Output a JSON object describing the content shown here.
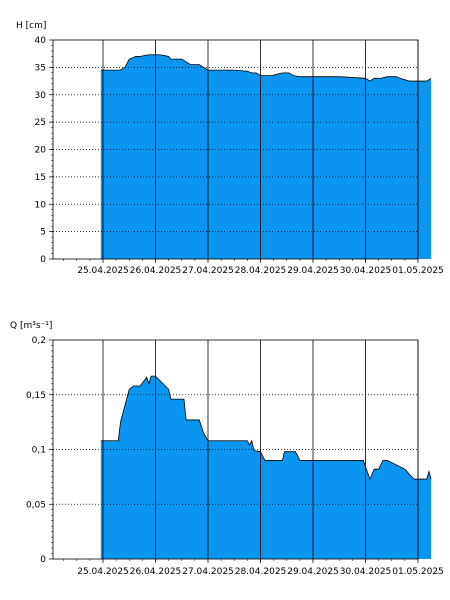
{
  "chart_data": [
    {
      "type": "area",
      "title": "",
      "xlabel": "",
      "ylabel": "H [cm]",
      "ylim": [
        0,
        40
      ],
      "y_ticks": [
        "0",
        "5",
        "10",
        "15",
        "20",
        "25",
        "30",
        "35",
        "40"
      ],
      "x_ticks": [
        "25.04.2025",
        "26.04.2025",
        "27.04.2025",
        "28.04.2025",
        "29.04.2025",
        "30.04.2025",
        "01.05.2025"
      ],
      "grid": true,
      "fill_color": "#0a96f0",
      "series": [
        {
          "x": [
            "2025-04-24 23:00",
            "2025-04-25 08:00",
            "2025-04-25 10:00",
            "2025-04-25 12:00",
            "2025-04-25 15:00",
            "2025-04-25 17:00",
            "2025-04-25 21:00",
            "2025-04-26 02:00",
            "2025-04-26 06:00",
            "2025-04-26 07:00",
            "2025-04-26 09:00",
            "2025-04-26 12:00",
            "2025-04-26 16:00",
            "2025-04-26 20:00",
            "2025-04-27 00:00",
            "2025-04-27 04:00",
            "2025-04-27 08:00",
            "2025-04-27 12:00",
            "2025-04-27 18:00",
            "2025-04-27 20:00",
            "2025-04-27 22:00",
            "2025-04-28 00:00",
            "2025-04-28 05:00",
            "2025-04-28 10:00",
            "2025-04-28 13:00",
            "2025-04-28 15:00",
            "2025-04-28 18:00",
            "2025-04-29 00:00",
            "2025-04-29 12:00",
            "2025-04-30 00:00",
            "2025-04-30 02:00",
            "2025-04-30 04:00",
            "2025-04-30 07:00",
            "2025-04-30 10:00",
            "2025-04-30 14:00",
            "2025-04-30 16:00",
            "2025-04-30 20:00",
            "2025-05-01 00:00",
            "2025-05-01 04:00",
            "2025-05-01 06:00"
          ],
          "values": [
            34.5,
            34.5,
            35.0,
            36.5,
            37.0,
            37.0,
            37.3,
            37.3,
            37.0,
            36.5,
            36.5,
            36.5,
            35.5,
            35.5,
            34.5,
            34.5,
            34.5,
            34.5,
            34.3,
            34.0,
            34.0,
            33.5,
            33.5,
            34.0,
            34.0,
            33.5,
            33.3,
            33.3,
            33.3,
            33.0,
            32.5,
            33.0,
            33.0,
            33.3,
            33.3,
            33.0,
            32.5,
            32.5,
            32.5,
            33.0
          ]
        }
      ]
    },
    {
      "type": "area",
      "title": "",
      "xlabel": "",
      "ylabel": "Q [m³s⁻¹]",
      "ylim": [
        0,
        0.2
      ],
      "y_ticks": [
        "0",
        "0,05",
        "0,1",
        "0,15",
        "0,2"
      ],
      "x_ticks": [
        "25.04.2025",
        "26.04.2025",
        "27.04.2025",
        "28.04.2025",
        "29.04.2025",
        "30.04.2025",
        "01.05.2025"
      ],
      "grid": true,
      "fill_color": "#0a96f0",
      "series": [
        {
          "x": [
            "2025-04-24 23:00",
            "2025-04-25 07:00",
            "2025-04-25 08:00",
            "2025-04-25 10:00",
            "2025-04-25 12:00",
            "2025-04-25 14:00",
            "2025-04-25 17:00",
            "2025-04-25 20:00",
            "2025-04-25 21:00",
            "2025-04-25 22:00",
            "2025-04-26 00:00",
            "2025-04-26 06:00",
            "2025-04-26 07:00",
            "2025-04-26 13:00",
            "2025-04-26 14:00",
            "2025-04-26 20:00",
            "2025-04-26 22:00",
            "2025-04-27 00:00",
            "2025-04-27 10:00",
            "2025-04-27 18:00",
            "2025-04-27 19:00",
            "2025-04-27 20:00",
            "2025-04-27 21:00",
            "2025-04-28 00:00",
            "2025-04-28 02:00",
            "2025-04-28 10:00",
            "2025-04-28 11:00",
            "2025-04-28 16:00",
            "2025-04-28 18:00",
            "2025-04-29 00:00",
            "2025-04-29 12:00",
            "2025-04-29 23:00",
            "2025-04-30 02:00",
            "2025-04-30 04:00",
            "2025-04-30 06:00",
            "2025-04-30 08:00",
            "2025-04-30 10:00",
            "2025-04-30 18:00",
            "2025-04-30 22:00",
            "2025-05-01 00:00",
            "2025-05-01 04:00",
            "2025-05-01 05:00",
            "2025-05-01 06:00"
          ],
          "values": [
            0.108,
            0.108,
            0.125,
            0.14,
            0.155,
            0.158,
            0.158,
            0.166,
            0.16,
            0.167,
            0.167,
            0.155,
            0.146,
            0.146,
            0.127,
            0.127,
            0.115,
            0.108,
            0.108,
            0.108,
            0.104,
            0.108,
            0.099,
            0.098,
            0.09,
            0.09,
            0.098,
            0.098,
            0.09,
            0.09,
            0.09,
            0.09,
            0.073,
            0.082,
            0.082,
            0.09,
            0.09,
            0.082,
            0.073,
            0.073,
            0.073,
            0.08,
            0.073
          ]
        }
      ]
    }
  ]
}
